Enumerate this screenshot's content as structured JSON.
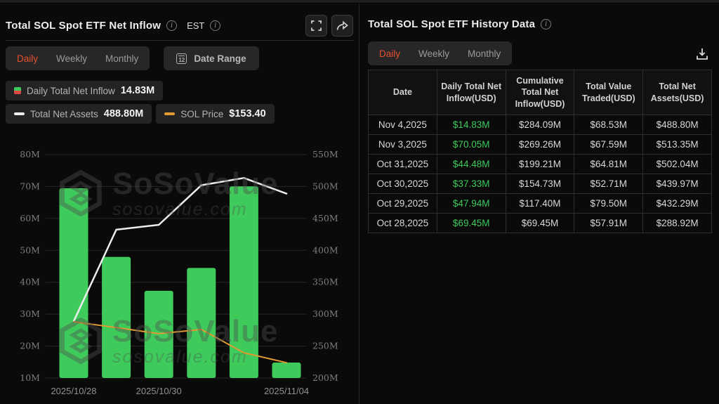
{
  "watermark": {
    "brand": "SoSoValue",
    "domain": "sosovalue.com"
  },
  "colors": {
    "accent_orange": "#e65031",
    "bar_green": "#3ecb5c",
    "line_white": "#ececec",
    "line_orange": "#e29a33",
    "grid": "#262626",
    "axis_text": "#7e7e7e",
    "date_text": "#8f8f8f"
  },
  "left_panel": {
    "title": "Total SOL Spot ETF Net Inflow",
    "est_label": "EST",
    "tabs": [
      "Daily",
      "Weekly",
      "Monthly"
    ],
    "active_tab": "Daily",
    "date_range_label": "Date Range",
    "legend": [
      {
        "label": "Daily Total Net Inflow",
        "value": "14.83M",
        "swatch": "bar"
      },
      {
        "label": "Total Net Assets",
        "value": "488.80M",
        "swatch": "line-white"
      },
      {
        "label": "SOL Price",
        "value": "$153.40",
        "swatch": "line-orange"
      }
    ]
  },
  "chart_data": {
    "type": "bar",
    "x": [
      "2025/10/28",
      "2025/10/29",
      "2025/10/30",
      "2025/10/31",
      "2025/11/03",
      "2025/11/04"
    ],
    "x_tick_labels": [
      {
        "index": 0,
        "label": "2025/10/28"
      },
      {
        "index": 2,
        "label": "2025/10/30"
      },
      {
        "index": 5,
        "label": "2025/11/04"
      }
    ],
    "series": [
      {
        "name": "Daily Total Net Inflow",
        "type": "bar",
        "axis": "left",
        "unit": "M USD",
        "values": [
          69.45,
          47.94,
          37.33,
          44.48,
          70.05,
          14.83
        ]
      },
      {
        "name": "Total Net Assets",
        "type": "line",
        "axis": "right",
        "unit": "M USD",
        "values": [
          288.92,
          432.29,
          439.97,
          502.04,
          513.35,
          488.8
        ]
      },
      {
        "name": "SOL Price",
        "type": "line",
        "axis": "hidden",
        "current_value_label": "$153.40",
        "plot_values_left_axis_units": [
          27.6,
          25.8,
          23.9,
          25.2,
          17.9,
          14.8
        ]
      }
    ],
    "left_axis": {
      "min": 10,
      "max": 80,
      "step": 10,
      "suffix": "M"
    },
    "right_axis": {
      "min": 200,
      "max": 550,
      "step": 50,
      "suffix": "M"
    },
    "grid": true,
    "legend_position": "top-left"
  },
  "right_panel": {
    "title": "Total SOL Spot ETF History Data",
    "tabs": [
      "Daily",
      "Weekly",
      "Monthly"
    ],
    "active_tab": "Daily",
    "table": {
      "columns": [
        "Date",
        "Daily Total Net Inflow(USD)",
        "Cumulative Total Net Inflow(USD)",
        "Total Value Traded(USD)",
        "Total Net Assets(USD)"
      ],
      "rows": [
        [
          "Nov 4,2025",
          "$14.83M",
          "$284.09M",
          "$68.53M",
          "$488.80M"
        ],
        [
          "Nov 3,2025",
          "$70.05M",
          "$269.26M",
          "$67.59M",
          "$513.35M"
        ],
        [
          "Oct 31,2025",
          "$44.48M",
          "$199.21M",
          "$64.81M",
          "$502.04M"
        ],
        [
          "Oct 30,2025",
          "$37.33M",
          "$154.73M",
          "$52.71M",
          "$439.97M"
        ],
        [
          "Oct 29,2025",
          "$47.94M",
          "$117.40M",
          "$79.50M",
          "$432.29M"
        ],
        [
          "Oct 28,2025",
          "$69.45M",
          "$69.45M",
          "$57.91M",
          "$288.92M"
        ]
      ]
    }
  }
}
